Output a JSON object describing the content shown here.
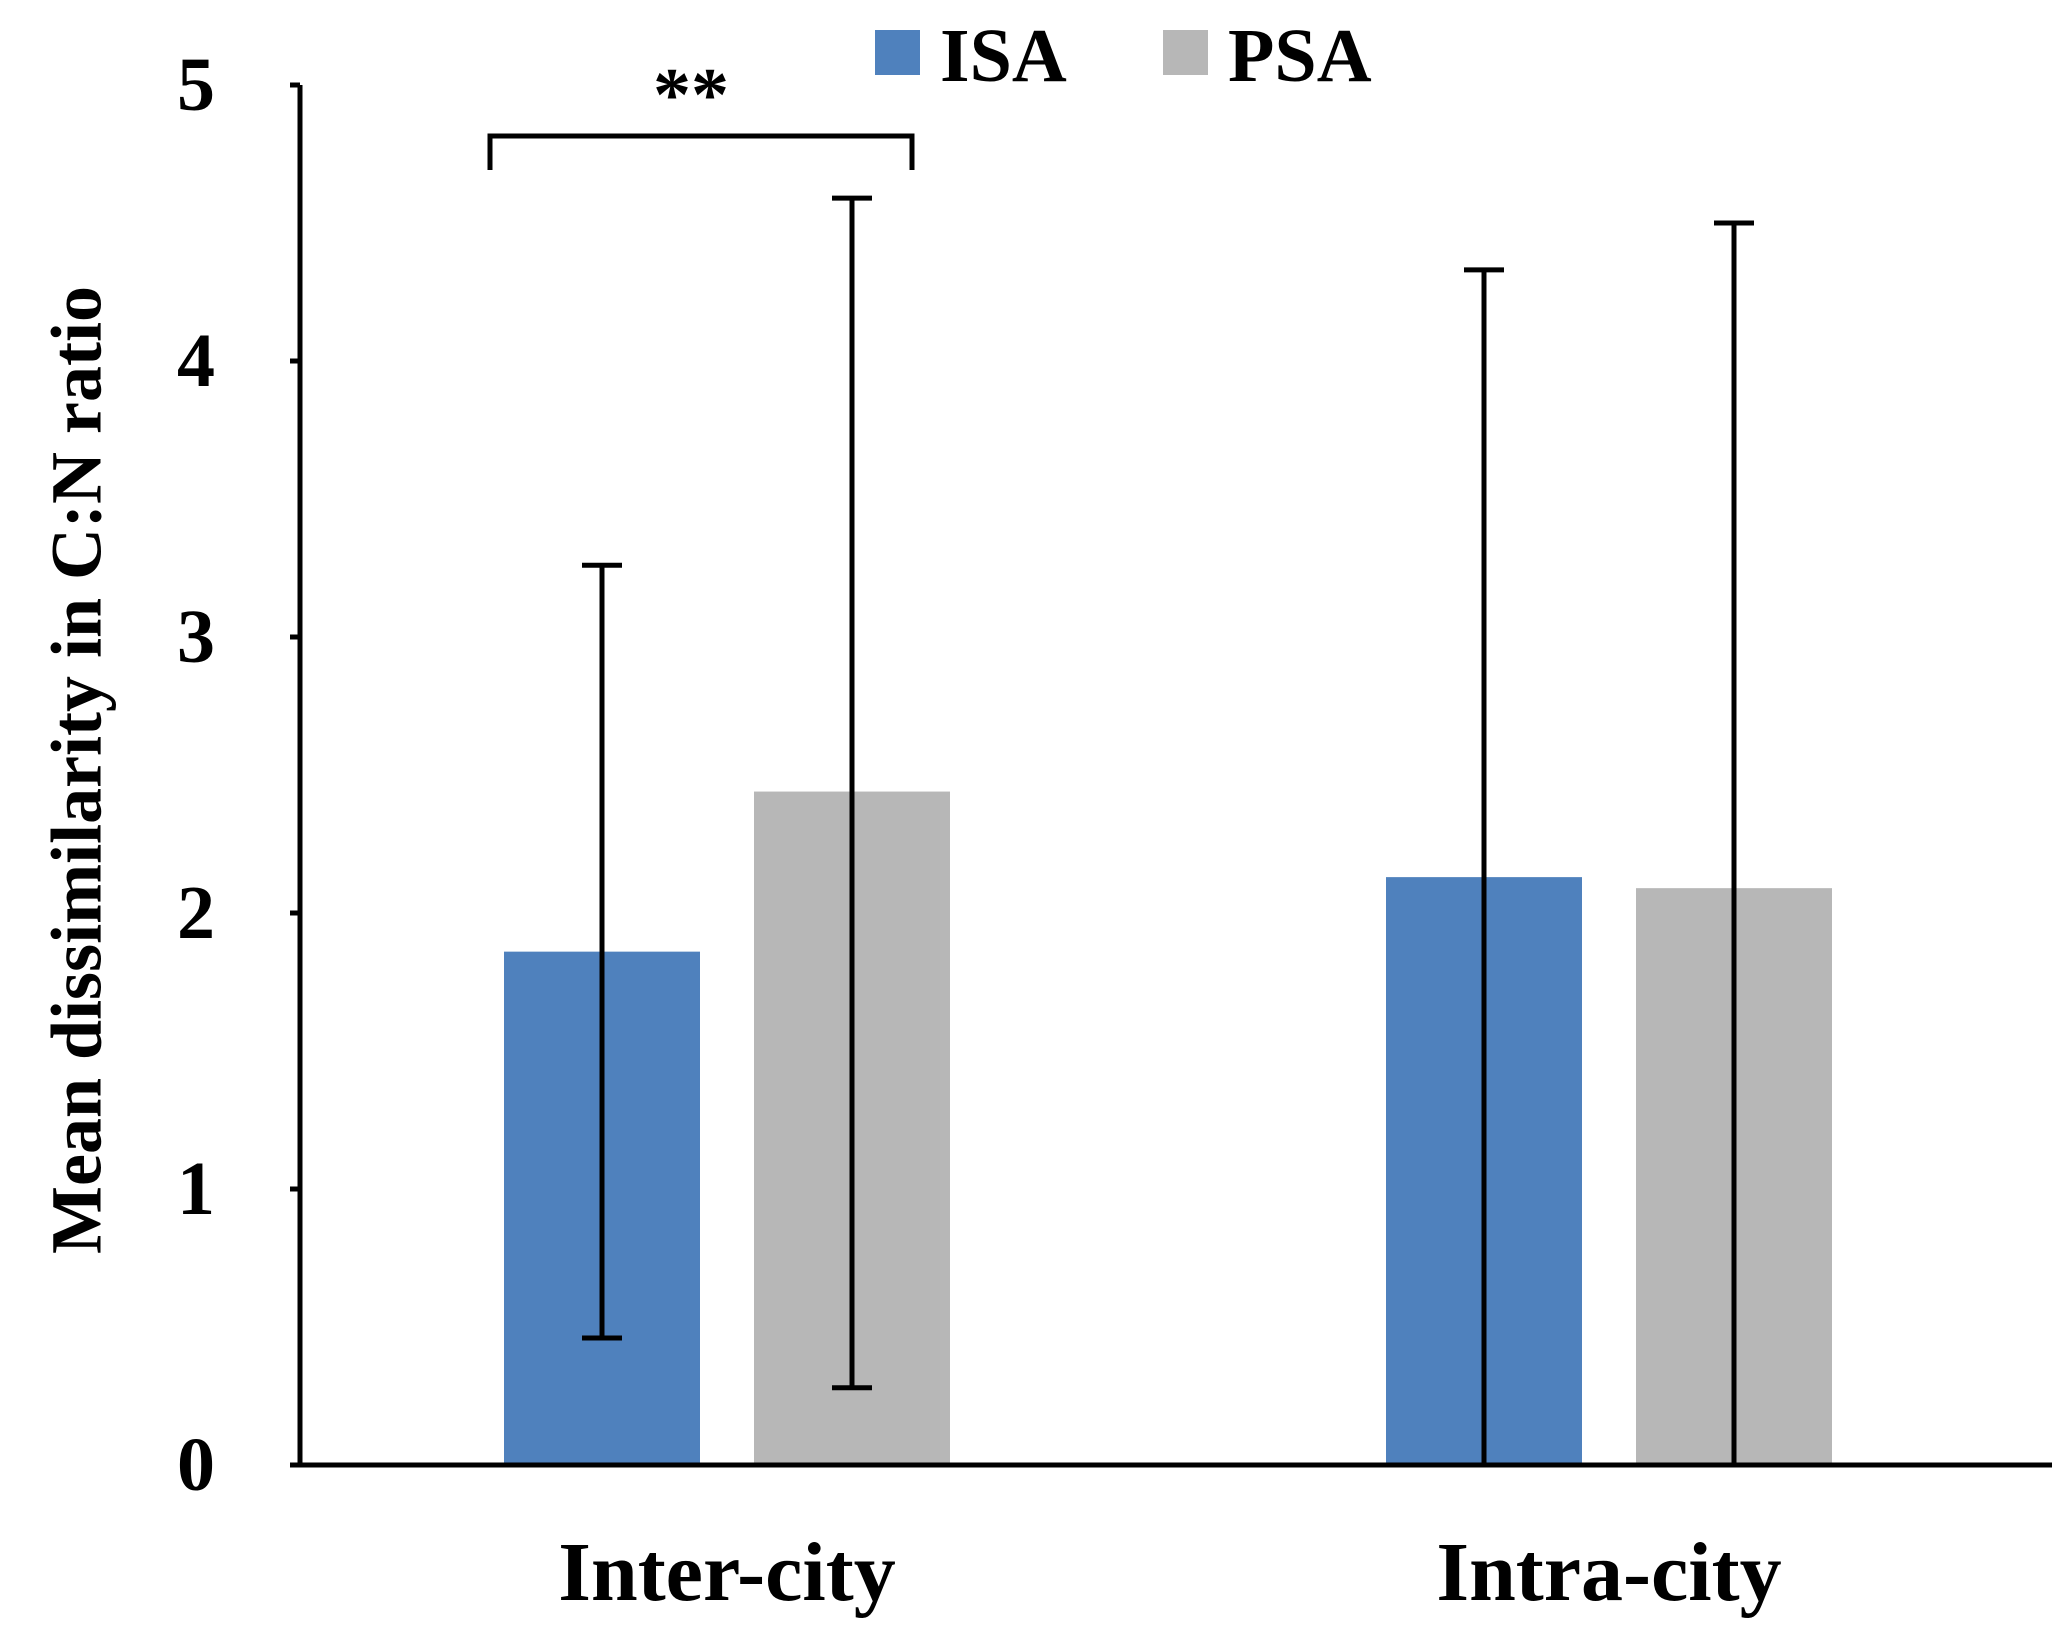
{
  "chart_data": {
    "type": "bar",
    "title": "",
    "xlabel": "",
    "ylabel": "Mean dissimilarity in C:N ratio",
    "ylim": [
      0,
      5
    ],
    "yticks": [
      "0",
      "1",
      "2",
      "3",
      "4",
      "5"
    ],
    "grid": false,
    "legend_position": "top-center",
    "categories": [
      "Inter-city",
      "Intra-city"
    ],
    "series": [
      {
        "name": "ISA",
        "color": "#4F81BD",
        "values": [
          1.86,
          2.13
        ],
        "error_low": [
          0.46,
          0.0
        ],
        "error_high": [
          3.26,
          4.33
        ]
      },
      {
        "name": "PSA",
        "color": "#B7B7B7",
        "values": [
          2.44,
          2.09
        ],
        "error_low": [
          0.28,
          0.0
        ],
        "error_high": [
          4.59,
          4.5
        ]
      }
    ],
    "annotations": [
      {
        "text": "**",
        "category": "Inter-city",
        "spans_series": [
          "ISA",
          "PSA"
        ]
      }
    ]
  }
}
